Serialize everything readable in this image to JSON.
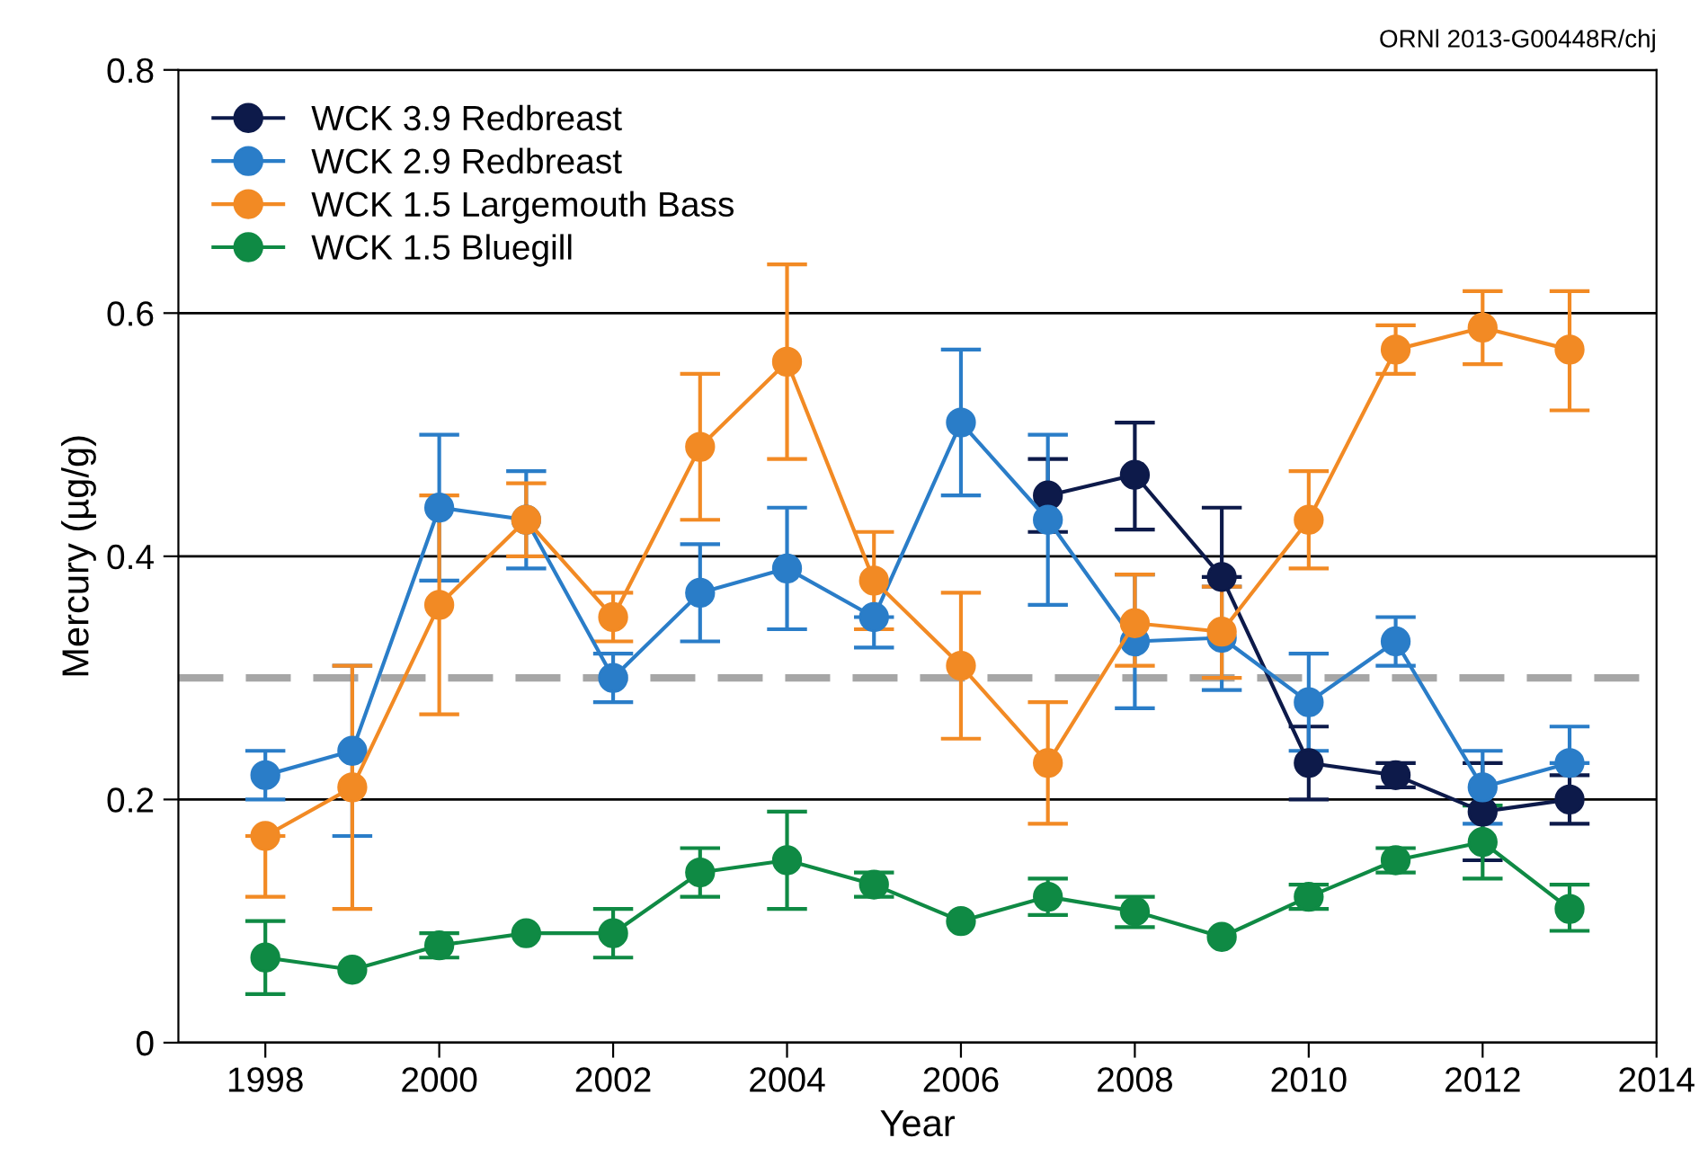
{
  "chart_data": {
    "type": "line",
    "xlabel": "Year",
    "ylabel": "Mercury (µg/g)",
    "annotations": [
      "ORNl 2013-G00448R/chj"
    ],
    "xlim": [
      1997,
      2014
    ],
    "xticks": [
      1998,
      2000,
      2002,
      2004,
      2006,
      2008,
      2010,
      2012,
      2014
    ],
    "ylim": [
      0,
      0.8
    ],
    "yticks": [
      0,
      0.2,
      0.4,
      0.6,
      0.8
    ],
    "grid": "y",
    "legend": "top left",
    "marker": "circle",
    "line_style": "solid",
    "ref_lines": [
      {
        "axis": "y",
        "value": 0.3,
        "color": "#a6a6a6",
        "line_style": "dashed"
      }
    ],
    "series": [
      {
        "name": "WCK 3.9 Redbreast",
        "color": "#0d1a4a",
        "x": [
          2007,
          2008,
          2009,
          2010,
          2011,
          2012,
          2013
        ],
        "values": [
          0.45,
          0.467,
          0.383,
          0.23,
          0.22,
          0.19,
          0.2
        ],
        "errors": [
          [
            0.42,
            0.48
          ],
          [
            0.422,
            0.51
          ],
          [
            0.383,
            0.44
          ],
          [
            0.2,
            0.26
          ],
          [
            0.21,
            0.23
          ],
          [
            0.15,
            0.23
          ],
          [
            0.18,
            0.22
          ]
        ]
      },
      {
        "name": "WCK 2.9 Redbreast",
        "color": "#2a7dc8",
        "x": [
          1998,
          1999,
          2000,
          2001,
          2002,
          2003,
          2004,
          2005,
          2006,
          2007,
          2008,
          2009,
          2010,
          2011,
          2012,
          2013
        ],
        "values": [
          0.22,
          0.24,
          0.44,
          0.43,
          0.3,
          0.37,
          0.39,
          0.35,
          0.51,
          0.43,
          0.33,
          0.333,
          0.28,
          0.33,
          0.21,
          0.23
        ],
        "errors": [
          [
            0.2,
            0.24
          ],
          [
            0.17,
            0.31
          ],
          [
            0.38,
            0.5
          ],
          [
            0.39,
            0.47
          ],
          [
            0.28,
            0.32
          ],
          [
            0.33,
            0.41
          ],
          [
            0.34,
            0.44
          ],
          [
            0.325,
            0.35
          ],
          [
            0.45,
            0.57
          ],
          [
            0.36,
            0.5
          ],
          [
            0.275,
            0.385
          ],
          [
            0.29,
            0.375
          ],
          [
            0.24,
            0.32
          ],
          [
            0.31,
            0.35
          ],
          [
            0.18,
            0.24
          ],
          [
            0.23,
            0.26
          ]
        ]
      },
      {
        "name": "WCK 1.5 Largemouth Bass",
        "color": "#f28a24",
        "x": [
          1998,
          1999,
          2000,
          2001,
          2002,
          2003,
          2004,
          2005,
          2006,
          2007,
          2008,
          2009,
          2010,
          2011,
          2012,
          2013
        ],
        "values": [
          0.17,
          0.21,
          0.36,
          0.43,
          0.35,
          0.49,
          0.56,
          0.38,
          0.31,
          0.23,
          0.345,
          0.338,
          0.43,
          0.57,
          0.588,
          0.57
        ],
        "errors": [
          [
            0.12,
            0.17
          ],
          [
            0.11,
            0.31
          ],
          [
            0.27,
            0.45
          ],
          [
            0.4,
            0.46
          ],
          [
            0.33,
            0.37
          ],
          [
            0.43,
            0.55
          ],
          [
            0.48,
            0.64
          ],
          [
            0.34,
            0.42
          ],
          [
            0.25,
            0.37
          ],
          [
            0.18,
            0.28
          ],
          [
            0.31,
            0.385
          ],
          [
            0.3,
            0.375
          ],
          [
            0.39,
            0.47
          ],
          [
            0.55,
            0.59
          ],
          [
            0.558,
            0.618
          ],
          [
            0.52,
            0.618
          ]
        ]
      },
      {
        "name": "WCK 1.5 Bluegill",
        "color": "#0f8a44",
        "x": [
          1998,
          1999,
          2000,
          2001,
          2002,
          2003,
          2004,
          2005,
          2006,
          2007,
          2008,
          2009,
          2010,
          2011,
          2012,
          2013
        ],
        "values": [
          0.07,
          0.06,
          0.08,
          0.09,
          0.09,
          0.14,
          0.15,
          0.13,
          0.1,
          0.12,
          0.108,
          0.087,
          0.12,
          0.15,
          0.165,
          0.11
        ],
        "errors": [
          [
            0.04,
            0.1
          ],
          null,
          [
            0.07,
            0.09
          ],
          null,
          [
            0.07,
            0.11
          ],
          [
            0.12,
            0.16
          ],
          [
            0.11,
            0.19
          ],
          [
            0.12,
            0.14
          ],
          null,
          [
            0.105,
            0.135
          ],
          [
            0.095,
            0.12
          ],
          null,
          [
            0.11,
            0.13
          ],
          [
            0.14,
            0.16
          ],
          [
            0.135,
            0.195
          ],
          [
            0.092,
            0.13
          ]
        ]
      }
    ]
  }
}
